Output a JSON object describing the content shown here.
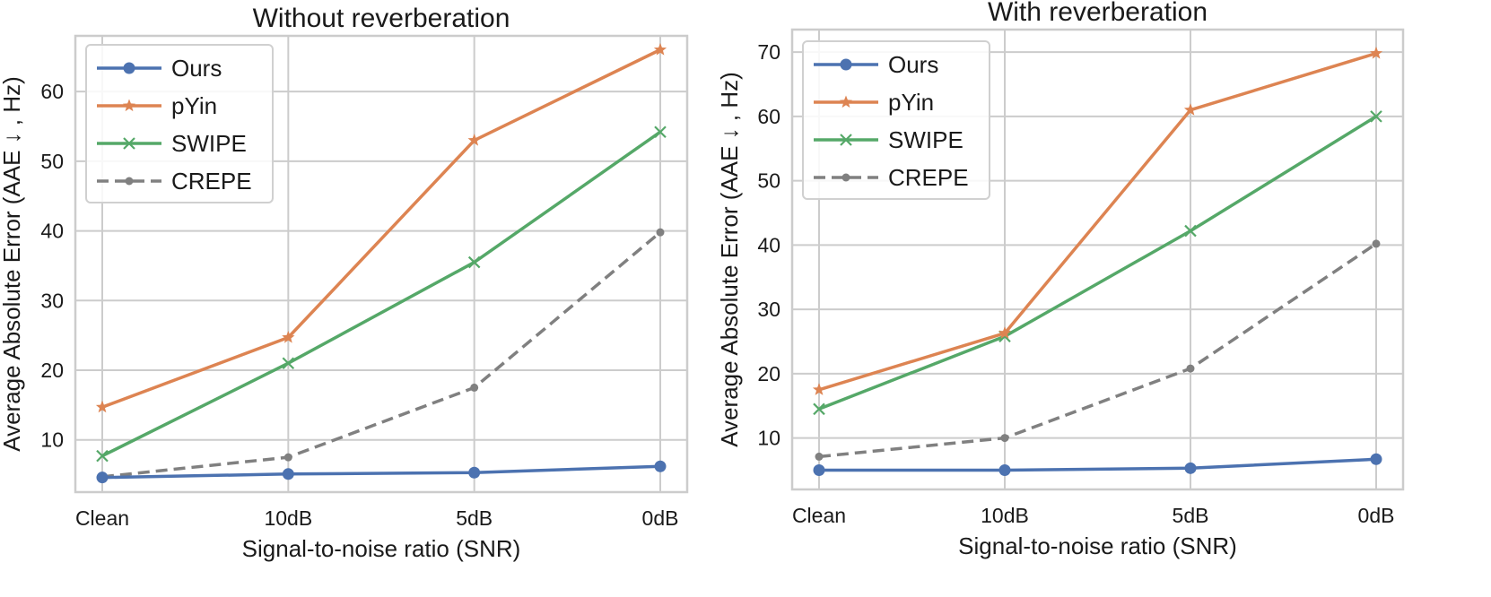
{
  "colors": {
    "ours": "#4c72b0",
    "pyin": "#dd8452",
    "swipe": "#55a868",
    "crepe": "#808080",
    "grid": "#cccccc"
  },
  "chart_data": [
    {
      "type": "line",
      "title": "Without reverberation",
      "xlabel": "Signal-to-noise ratio (SNR)",
      "ylabel": "Average Absolute Error (AAE ↓ , Hz)",
      "categories": [
        "Clean",
        "10dB",
        "5dB",
        "0dB"
      ],
      "ylim": [
        2.5,
        68
      ],
      "yticks": [
        10,
        20,
        30,
        40,
        50,
        60
      ],
      "grid": true,
      "legend_position": "top-left",
      "series": [
        {
          "name": "Ours",
          "key": "ours",
          "marker": "circle",
          "dash": "solid",
          "values": [
            4.6,
            5.1,
            5.3,
            6.2
          ]
        },
        {
          "name": "pYin",
          "key": "pyin",
          "marker": "star",
          "dash": "solid",
          "values": [
            14.7,
            24.7,
            53.0,
            66.0
          ]
        },
        {
          "name": "SWIPE",
          "key": "swipe",
          "marker": "x",
          "dash": "solid",
          "values": [
            7.7,
            21.0,
            35.5,
            54.2
          ]
        },
        {
          "name": "CREPE",
          "key": "crepe",
          "marker": "dot",
          "dash": "dashed",
          "values": [
            4.7,
            7.5,
            17.5,
            39.8
          ]
        }
      ]
    },
    {
      "type": "line",
      "title": "With reverberation",
      "xlabel": "Signal-to-noise ratio (SNR)",
      "ylabel": "Average Absolute Error (AAE ↓ , Hz)",
      "categories": [
        "Clean",
        "10dB",
        "5dB",
        "0dB"
      ],
      "ylim": [
        2.0,
        73.5
      ],
      "yticks": [
        10,
        20,
        30,
        40,
        50,
        60,
        70
      ],
      "grid": true,
      "legend_position": "top-left",
      "series": [
        {
          "name": "Ours",
          "key": "ours",
          "marker": "circle",
          "dash": "solid",
          "values": [
            5.0,
            5.0,
            5.3,
            6.7
          ]
        },
        {
          "name": "pYin",
          "key": "pyin",
          "marker": "star",
          "dash": "solid",
          "values": [
            17.5,
            26.3,
            61.0,
            69.8
          ]
        },
        {
          "name": "SWIPE",
          "key": "swipe",
          "marker": "x",
          "dash": "solid",
          "values": [
            14.5,
            25.8,
            42.2,
            60.0
          ]
        },
        {
          "name": "CREPE",
          "key": "crepe",
          "marker": "dot",
          "dash": "dashed",
          "values": [
            7.1,
            10.0,
            20.8,
            40.2
          ]
        }
      ]
    }
  ]
}
